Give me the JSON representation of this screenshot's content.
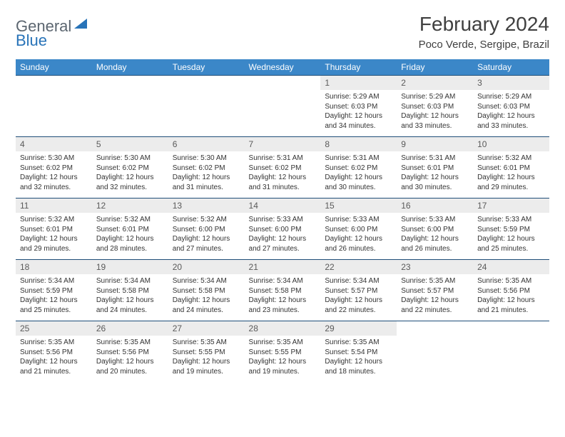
{
  "logo": {
    "general": "General",
    "blue": "Blue"
  },
  "title": "February 2024",
  "location": "Poco Verde, Sergipe, Brazil",
  "colors": {
    "header_bg": "#3b87c8",
    "header_text": "#ffffff",
    "daynum_bg": "#ececec",
    "border": "#1f4e79",
    "logo_gray": "#5c6670",
    "logo_blue": "#2873b8"
  },
  "day_headers": [
    "Sunday",
    "Monday",
    "Tuesday",
    "Wednesday",
    "Thursday",
    "Friday",
    "Saturday"
  ],
  "weeks": [
    {
      "nums": [
        "",
        "",
        "",
        "",
        "1",
        "2",
        "3"
      ],
      "details": [
        "",
        "",
        "",
        "",
        "Sunrise: 5:29 AM\nSunset: 6:03 PM\nDaylight: 12 hours and 34 minutes.",
        "Sunrise: 5:29 AM\nSunset: 6:03 PM\nDaylight: 12 hours and 33 minutes.",
        "Sunrise: 5:29 AM\nSunset: 6:03 PM\nDaylight: 12 hours and 33 minutes."
      ]
    },
    {
      "nums": [
        "4",
        "5",
        "6",
        "7",
        "8",
        "9",
        "10"
      ],
      "details": [
        "Sunrise: 5:30 AM\nSunset: 6:02 PM\nDaylight: 12 hours and 32 minutes.",
        "Sunrise: 5:30 AM\nSunset: 6:02 PM\nDaylight: 12 hours and 32 minutes.",
        "Sunrise: 5:30 AM\nSunset: 6:02 PM\nDaylight: 12 hours and 31 minutes.",
        "Sunrise: 5:31 AM\nSunset: 6:02 PM\nDaylight: 12 hours and 31 minutes.",
        "Sunrise: 5:31 AM\nSunset: 6:02 PM\nDaylight: 12 hours and 30 minutes.",
        "Sunrise: 5:31 AM\nSunset: 6:01 PM\nDaylight: 12 hours and 30 minutes.",
        "Sunrise: 5:32 AM\nSunset: 6:01 PM\nDaylight: 12 hours and 29 minutes."
      ]
    },
    {
      "nums": [
        "11",
        "12",
        "13",
        "14",
        "15",
        "16",
        "17"
      ],
      "details": [
        "Sunrise: 5:32 AM\nSunset: 6:01 PM\nDaylight: 12 hours and 29 minutes.",
        "Sunrise: 5:32 AM\nSunset: 6:01 PM\nDaylight: 12 hours and 28 minutes.",
        "Sunrise: 5:32 AM\nSunset: 6:00 PM\nDaylight: 12 hours and 27 minutes.",
        "Sunrise: 5:33 AM\nSunset: 6:00 PM\nDaylight: 12 hours and 27 minutes.",
        "Sunrise: 5:33 AM\nSunset: 6:00 PM\nDaylight: 12 hours and 26 minutes.",
        "Sunrise: 5:33 AM\nSunset: 6:00 PM\nDaylight: 12 hours and 26 minutes.",
        "Sunrise: 5:33 AM\nSunset: 5:59 PM\nDaylight: 12 hours and 25 minutes."
      ]
    },
    {
      "nums": [
        "18",
        "19",
        "20",
        "21",
        "22",
        "23",
        "24"
      ],
      "details": [
        "Sunrise: 5:34 AM\nSunset: 5:59 PM\nDaylight: 12 hours and 25 minutes.",
        "Sunrise: 5:34 AM\nSunset: 5:58 PM\nDaylight: 12 hours and 24 minutes.",
        "Sunrise: 5:34 AM\nSunset: 5:58 PM\nDaylight: 12 hours and 24 minutes.",
        "Sunrise: 5:34 AM\nSunset: 5:58 PM\nDaylight: 12 hours and 23 minutes.",
        "Sunrise: 5:34 AM\nSunset: 5:57 PM\nDaylight: 12 hours and 22 minutes.",
        "Sunrise: 5:35 AM\nSunset: 5:57 PM\nDaylight: 12 hours and 22 minutes.",
        "Sunrise: 5:35 AM\nSunset: 5:56 PM\nDaylight: 12 hours and 21 minutes."
      ]
    },
    {
      "nums": [
        "25",
        "26",
        "27",
        "28",
        "29",
        "",
        ""
      ],
      "details": [
        "Sunrise: 5:35 AM\nSunset: 5:56 PM\nDaylight: 12 hours and 21 minutes.",
        "Sunrise: 5:35 AM\nSunset: 5:56 PM\nDaylight: 12 hours and 20 minutes.",
        "Sunrise: 5:35 AM\nSunset: 5:55 PM\nDaylight: 12 hours and 19 minutes.",
        "Sunrise: 5:35 AM\nSunset: 5:55 PM\nDaylight: 12 hours and 19 minutes.",
        "Sunrise: 5:35 AM\nSunset: 5:54 PM\nDaylight: 12 hours and 18 minutes.",
        "",
        ""
      ]
    }
  ]
}
